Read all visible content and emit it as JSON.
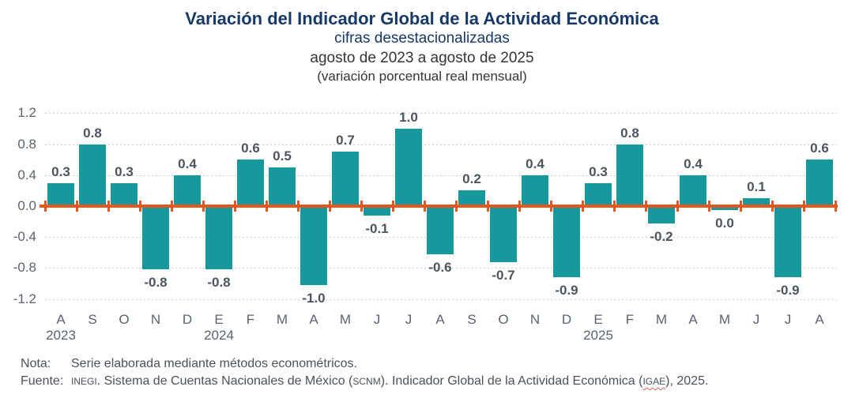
{
  "header": {
    "title": "Variación del Indicador Global de la Actividad Económica",
    "subtitle": "cifras desestacionalizadas",
    "period": "agosto de 2023 a agosto de 2025",
    "measure": "(variación porcentual real mensual)"
  },
  "chart_data": {
    "type": "bar",
    "title": "Variación del Indicador Global de la Actividad Económica",
    "subtitle": "cifras desestacionalizadas, agosto de 2023 a agosto de 2025",
    "ylabel": "variación porcentual real mensual",
    "categories": [
      "A",
      "S",
      "O",
      "N",
      "D",
      "E",
      "F",
      "M",
      "A",
      "M",
      "J",
      "J",
      "A",
      "S",
      "O",
      "N",
      "D",
      "E",
      "F",
      "M",
      "A",
      "M",
      "J",
      "J",
      "A"
    ],
    "values": [
      0.3,
      0.8,
      0.3,
      -0.8,
      0.4,
      -0.8,
      0.6,
      0.5,
      -1.0,
      0.7,
      -0.1,
      1.0,
      -0.6,
      0.2,
      -0.7,
      0.4,
      -0.9,
      0.3,
      0.8,
      -0.2,
      0.4,
      0.0,
      0.1,
      -0.9,
      0.6
    ],
    "value_labels": [
      "0.3",
      "0.8",
      "0.3",
      "-0.8",
      "0.4",
      "-0.8",
      "0.6",
      "0.5",
      "-1.0",
      "0.7",
      "-0.1",
      "1.0",
      "-0.6",
      "0.2",
      "-0.7",
      "0.4",
      "-0.9",
      "0.3",
      "0.8",
      "-0.2",
      "0.4",
      "0.0",
      "0.1",
      "-0.9",
      "0.6"
    ],
    "year_markers": [
      {
        "label": "2023",
        "slot": 0
      },
      {
        "label": "2024",
        "slot": 5
      },
      {
        "label": "2025",
        "slot": 17
      }
    ],
    "y_ticks": [
      1.2,
      0.8,
      0.4,
      0.0,
      -0.4,
      -0.8,
      -1.2
    ],
    "y_tick_labels": [
      "1.2",
      "0.8",
      "0.4",
      "0.0",
      "-0.4",
      "-0.8",
      "-1.2"
    ],
    "ylim": [
      -1.2,
      1.2
    ],
    "grid": "dotted horizontal, zero axis highlighted",
    "legend": "none",
    "bar_color": "#17989C",
    "zero_line_color": "#E4571E"
  },
  "colors": {
    "bar_teal": "#17989C",
    "axis_orange": "#E4571E",
    "title_navy": "#16396A",
    "axis_text_gray": "#596370",
    "value_label_gray": "#4C555F",
    "gridline_gray": "#C5CBD0"
  },
  "footer": {
    "note_label": "Nota:",
    "note_text": "Serie elaborada mediante métodos econométricos.",
    "source_label": "Fuente:",
    "source_segments": [
      {
        "text": "INEGI",
        "small_caps": true,
        "red_underline": false
      },
      {
        "text": ". Sistema de Cuentas Nacionales de México (",
        "small_caps": false,
        "red_underline": false
      },
      {
        "text": "SCNM",
        "small_caps": true,
        "red_underline": false
      },
      {
        "text": "). Indicador Global de la Actividad Económica (",
        "small_caps": false,
        "red_underline": false
      },
      {
        "text": "IGAE",
        "small_caps": true,
        "red_underline": true
      },
      {
        "text": "), 2025.",
        "small_caps": false,
        "red_underline": false
      }
    ]
  }
}
